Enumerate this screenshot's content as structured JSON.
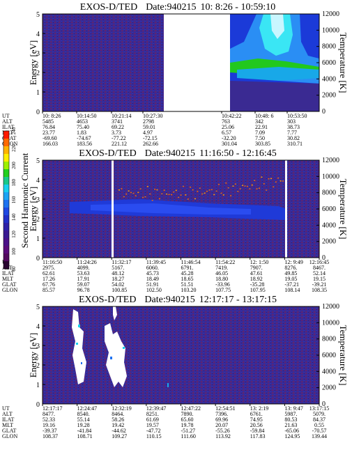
{
  "chart_data": [
    {
      "type": "heatmap",
      "title": "EXOS-D/TED",
      "date_label": "Date:940215",
      "time_range": "10: 8:26 - 10:59:10",
      "ylabel": "Energy [eV]",
      "y2label": "Temperature [K]",
      "ylim": [
        0,
        5
      ],
      "y2lim": [
        0,
        12000
      ],
      "yticks": [
        "0",
        "1",
        "2",
        "3",
        "4",
        "5"
      ],
      "y2ticks": [
        "0",
        "2000",
        "4000",
        "6000",
        "8000",
        "10000",
        "12000"
      ],
      "data_gaps": [
        [
          0.55,
          0.79
        ]
      ],
      "ephemeris_labels": [
        "UT",
        "ALT",
        "ILAT",
        "MLT",
        "GLAT",
        "GLON"
      ],
      "ephemeris_columns": [
        [
          "10: 8:26",
          "5485",
          "76.84",
          "23.77",
          "-69.60",
          "166.03"
        ],
        [
          "10:14:50",
          "4653",
          "75.40",
          "1.83",
          "-74.67",
          "183.56"
        ],
        [
          "10:21:14",
          "3741",
          "69.22",
          "3.73",
          "-77.22",
          "221.12"
        ],
        [
          "10:27:30",
          "2798",
          "59.01",
          "4.97",
          "-72.15",
          "262.66"
        ],
        [
          "10:42:22",
          "763",
          "25.06",
          "6.57",
          "-32.20",
          "301.04"
        ],
        [
          "10:48: 6",
          "342",
          "22.91",
          "7.09",
          "7.50",
          "303.85"
        ],
        [
          "10:53:50",
          "303",
          "38.73",
          "7.77",
          "30.82",
          "310.71"
        ]
      ]
    },
    {
      "type": "heatmap",
      "title": "EXOS-D/TED",
      "date_label": "Date:940215",
      "time_range": "11:16:50 - 12:16:45",
      "ylabel": "Energy [eV]",
      "y2label": "Temperature [K]",
      "ylim": [
        0,
        5
      ],
      "y2lim": [
        0,
        12000
      ],
      "yticks": [
        "0",
        "1",
        "2",
        "3",
        "4",
        "5"
      ],
      "y2ticks": [
        "0",
        "2000",
        "4000",
        "6000",
        "8000",
        "10000",
        "12000"
      ],
      "data_gaps": [
        [
          0.398,
          0.404
        ],
        [
          0.904,
          0.912
        ]
      ],
      "ephemeris_labels": [
        "UT",
        "ALT",
        "ILAT",
        "MLT",
        "GLAT",
        "GLON"
      ],
      "ephemeris_columns": [
        [
          "11:16:50",
          "2975.",
          "62.61",
          "17.26",
          "67.76",
          "85.57"
        ],
        [
          "11:24:26",
          "4099.",
          "53.63",
          "17.91",
          "59.07",
          "96.78"
        ],
        [
          "11:32:17",
          "5167.",
          "48.12",
          "18.27",
          "54.02",
          "100.85"
        ],
        [
          "11:39:45",
          "6060.",
          "45.73",
          "18.49",
          "51.91",
          "102.50"
        ],
        [
          "11:46:54",
          "6791.",
          "45.28",
          "18.65",
          "51.51",
          "103.20"
        ],
        [
          "11:54:22",
          "7419.",
          "46.05",
          "18.80",
          "-33.96",
          "107.75"
        ],
        [
          "12: 1:50",
          "7907.",
          "47.61",
          "18.92",
          "-35.28",
          "107.95"
        ],
        [
          "12: 9:49",
          "8276.",
          "49.85",
          "19.05",
          "-37.21",
          "108.14"
        ],
        [
          "12:16:45",
          "8467.",
          "52.14",
          "19.15",
          "-39.21",
          "108.35"
        ]
      ]
    },
    {
      "type": "heatmap",
      "title": "EXOS-D/TED",
      "date_label": "Date:940215",
      "time_range": "12:17:17 - 13:17:15",
      "ylabel": "Energy [eV]",
      "y2label": "Temperature [K]",
      "ylim": [
        0,
        5
      ],
      "y2lim": [
        0,
        12000
      ],
      "yticks": [
        "0",
        "1",
        "2",
        "3",
        "4",
        "5"
      ],
      "y2ticks": [
        "0",
        "2000",
        "4000",
        "6000",
        "8000",
        "10000",
        "12000"
      ],
      "ephemeris_labels": [
        "UT",
        "ALT",
        "ILAT",
        "MLT",
        "GLAT",
        "GLON"
      ],
      "ephemeris_columns": [
        [
          "12:17:17",
          "8477.",
          "52.33",
          "19.16",
          "-39.37",
          "108.37"
        ],
        [
          "12:24:47",
          "8540.",
          "55.14",
          "19.28",
          "-41.84",
          "108.71"
        ],
        [
          "12:32:19",
          "8464.",
          "58.26",
          "19.42",
          "-44.62",
          "109.27"
        ],
        [
          "12:39:47",
          "8251.",
          "61.69",
          "19.57",
          "-47.72",
          "110.15"
        ],
        [
          "12:47:22",
          "7890.",
          "65.60",
          "19.78",
          "-51.27",
          "111.60"
        ],
        [
          "12:54:51",
          "7396.",
          "69.96",
          "20.07",
          "-55.26",
          "113.92"
        ],
        [
          "13: 2:19",
          "6761.",
          "74.95",
          "20.56",
          "-59.84",
          "117.83"
        ],
        [
          "13: 9:47",
          "5987.",
          "80.53",
          "21.63",
          "-65.06",
          "124.95"
        ],
        [
          "13:17:15",
          "5079.",
          "84.37",
          "0.55",
          "-70.57",
          "139.44"
        ]
      ]
    }
  ],
  "colorbar": {
    "label": "Second Harmonic Current",
    "ticks": [
      "80",
      "100",
      "120",
      "140",
      "160",
      "180",
      "200",
      "220",
      "240"
    ]
  },
  "colors": {
    "background": "#3a2a92",
    "low": "#5b1080",
    "mid": "#1f38d6",
    "cyan": "#18d0ee",
    "green": "#22c81e",
    "white": "#ffffff"
  }
}
